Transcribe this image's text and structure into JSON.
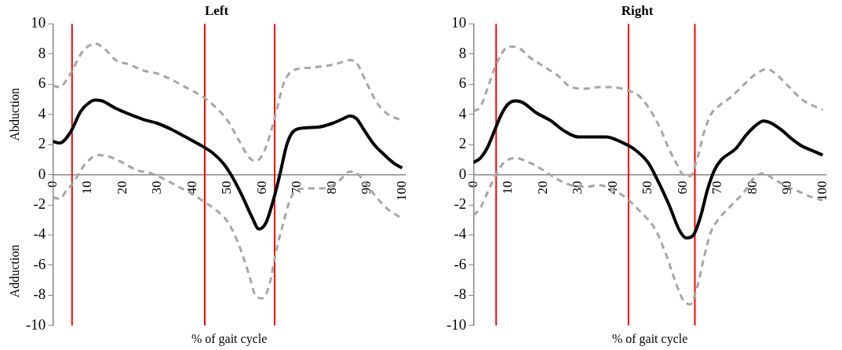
{
  "chart_data": [
    {
      "type": "line",
      "title": "Left",
      "xlabel": "% of gait cycle",
      "ylabel": "Abduction",
      "annotations": [
        "Adduction"
      ],
      "marker": "none",
      "grid": false,
      "xlim": [
        0,
        101
      ],
      "xticks": [
        0,
        10,
        20,
        30,
        40,
        50,
        60,
        70,
        80,
        90,
        100
      ],
      "ylim": [
        -10,
        10
      ],
      "yticks": [
        -10,
        -8,
        -6,
        -4,
        -2,
        0,
        2,
        4,
        6,
        8,
        10
      ],
      "series": [
        {
          "color": "#000000",
          "line_style": "solid",
          "x": [
            0,
            2,
            5,
            8,
            10,
            12,
            14,
            18,
            22,
            26,
            30,
            34,
            38,
            42,
            46,
            49,
            51,
            54,
            57,
            59,
            61,
            63,
            65,
            67,
            69,
            72,
            76,
            80,
            83,
            85,
            87,
            89,
            92,
            95,
            98,
            100
          ],
          "values": [
            2.2,
            2.1,
            2.8,
            4.2,
            4.7,
            4.95,
            4.9,
            4.4,
            4.0,
            3.65,
            3.4,
            3.0,
            2.5,
            2.0,
            1.4,
            0.7,
            0,
            -1.3,
            -2.8,
            -3.6,
            -3.2,
            -1.8,
            0,
            2,
            2.9,
            3.1,
            3.15,
            3.4,
            3.7,
            3.9,
            3.7,
            3.0,
            2.0,
            1.3,
            0.7,
            0.45
          ]
        },
        {
          "color": "#a6a6a6",
          "line_style": "dashed",
          "x": [
            0,
            2,
            4,
            6,
            8,
            10,
            12,
            15,
            18,
            22,
            26,
            30,
            34,
            38,
            42,
            46,
            50,
            53,
            56,
            58,
            60,
            62,
            64,
            66,
            68,
            70,
            74,
            78,
            82,
            85,
            87,
            90,
            93,
            96,
            100
          ],
          "values": [
            5.9,
            5.8,
            6.3,
            7.1,
            8.0,
            8.5,
            8.7,
            8.3,
            7.6,
            7.3,
            6.9,
            6.7,
            6.3,
            5.8,
            5.3,
            4.6,
            3.6,
            2.4,
            1.2,
            0.9,
            1.3,
            2.5,
            4.2,
            6.0,
            6.8,
            7.0,
            7.1,
            7.2,
            7.4,
            7.6,
            7.4,
            6.0,
            4.7,
            4.0,
            3.6
          ]
        },
        {
          "color": "#a6a6a6",
          "line_style": "dashed",
          "x": [
            0,
            2,
            4,
            6,
            8,
            10,
            13,
            16,
            20,
            24,
            28,
            32,
            36,
            40,
            44,
            47,
            50,
            53,
            56,
            58,
            60,
            62,
            64,
            66,
            68,
            70,
            74,
            78,
            82,
            85,
            87,
            90,
            93,
            96,
            100
          ],
          "values": [
            -1.5,
            -1.6,
            -1.0,
            -0.5,
            0.3,
            0.9,
            1.3,
            1.2,
            0.8,
            0.3,
            0.1,
            -0.3,
            -0.8,
            -1.3,
            -1.9,
            -2.4,
            -3.1,
            -4.5,
            -6.5,
            -8.0,
            -8.2,
            -7.3,
            -5.0,
            -3.2,
            -1.6,
            -1.0,
            -0.9,
            -0.9,
            -0.4,
            0.2,
            0.1,
            -0.7,
            -1.6,
            -2.3,
            -2.9
          ]
        }
      ],
      "ref_lines": [
        {
          "axis": "x",
          "value": 5.5,
          "color": "#ff0000"
        },
        {
          "axis": "x",
          "value": 43.5,
          "color": "#ff0000"
        },
        {
          "axis": "x",
          "value": 63.5,
          "color": "#ff0000"
        }
      ]
    },
    {
      "type": "line",
      "title": "Right",
      "xlabel": "% of gait cycle",
      "marker": "none",
      "grid": false,
      "xlim": [
        0,
        101
      ],
      "xticks": [
        0,
        10,
        20,
        30,
        40,
        50,
        60,
        70,
        80,
        90,
        100
      ],
      "ylim": [
        -10,
        10
      ],
      "yticks": [
        -10,
        -8,
        -6,
        -4,
        -2,
        0,
        2,
        4,
        6,
        8,
        10
      ],
      "series": [
        {
          "color": "#000000",
          "line_style": "solid",
          "x": [
            0,
            2,
            4,
            6,
            8,
            10,
            12,
            14,
            18,
            22,
            26,
            30,
            34,
            38,
            42,
            46,
            50,
            53,
            56,
            59,
            61,
            63,
            65,
            67,
            69,
            71,
            75,
            78,
            81,
            83,
            85,
            88,
            91,
            94,
            97,
            100
          ],
          "values": [
            0.8,
            1.1,
            1.8,
            2.9,
            4.0,
            4.7,
            4.9,
            4.8,
            4.1,
            3.6,
            2.9,
            2.5,
            2.5,
            2.5,
            2.2,
            1.7,
            0.8,
            -0.5,
            -2.0,
            -3.7,
            -4.2,
            -4.0,
            -2.8,
            -1.0,
            0.3,
            1.0,
            1.7,
            2.6,
            3.3,
            3.55,
            3.45,
            3.0,
            2.4,
            1.9,
            1.6,
            1.3
          ]
        },
        {
          "color": "#a6a6a6",
          "line_style": "dashed",
          "x": [
            0,
            2,
            4,
            6,
            8,
            10,
            13,
            16,
            20,
            24,
            28,
            32,
            36,
            40,
            44,
            47,
            50,
            53,
            56,
            58,
            60,
            62,
            64,
            66,
            68,
            70,
            74,
            78,
            81,
            84,
            86,
            90,
            94,
            97,
            100
          ],
          "values": [
            4.2,
            4.5,
            5.7,
            7.0,
            8.0,
            8.5,
            8.4,
            7.8,
            7.2,
            6.6,
            5.8,
            5.7,
            5.8,
            5.8,
            5.6,
            5.3,
            4.5,
            3.3,
            1.7,
            0.8,
            0.0,
            -0.1,
            1.0,
            2.8,
            4.0,
            4.5,
            5.2,
            6.1,
            6.7,
            7.0,
            6.8,
            5.9,
            5.0,
            4.6,
            4.3
          ]
        },
        {
          "color": "#a6a6a6",
          "line_style": "dashed",
          "x": [
            0,
            2,
            4,
            6,
            8,
            10,
            12,
            16,
            20,
            24,
            28,
            32,
            36,
            40,
            44,
            48,
            52,
            55,
            58,
            60,
            62,
            64,
            66,
            68,
            70,
            74,
            78,
            80,
            83,
            86,
            90,
            94,
            97,
            100
          ],
          "values": [
            -2.7,
            -2.2,
            -1.2,
            -0.2,
            0.6,
            1.0,
            1.1,
            0.8,
            0.3,
            -0.3,
            -0.7,
            -0.8,
            -0.7,
            -1.0,
            -1.6,
            -2.5,
            -3.6,
            -5.2,
            -7.2,
            -8.3,
            -8.6,
            -7.5,
            -5.5,
            -3.8,
            -3.0,
            -2.0,
            -1.0,
            -0.3,
            0.1,
            -0.3,
            -0.8,
            -1.2,
            -1.5,
            -1.7
          ]
        }
      ],
      "ref_lines": [
        {
          "axis": "x",
          "value": 6.5,
          "color": "#ff0000"
        },
        {
          "axis": "x",
          "value": 44.4,
          "color": "#ff0000"
        },
        {
          "axis": "x",
          "value": 63.4,
          "color": "#ff0000"
        }
      ]
    }
  ]
}
